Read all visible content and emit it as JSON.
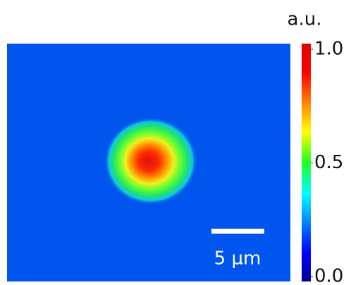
{
  "colorbar": {
    "unit": "a.u.",
    "range": [
      0,
      1
    ],
    "ticks": [
      {
        "value": 1,
        "label": "1.0"
      },
      {
        "value": 0.5,
        "label": "0.5"
      },
      {
        "value": 0,
        "label": "0.0"
      }
    ]
  },
  "scale_bar": {
    "label": "5 µm"
  }
}
